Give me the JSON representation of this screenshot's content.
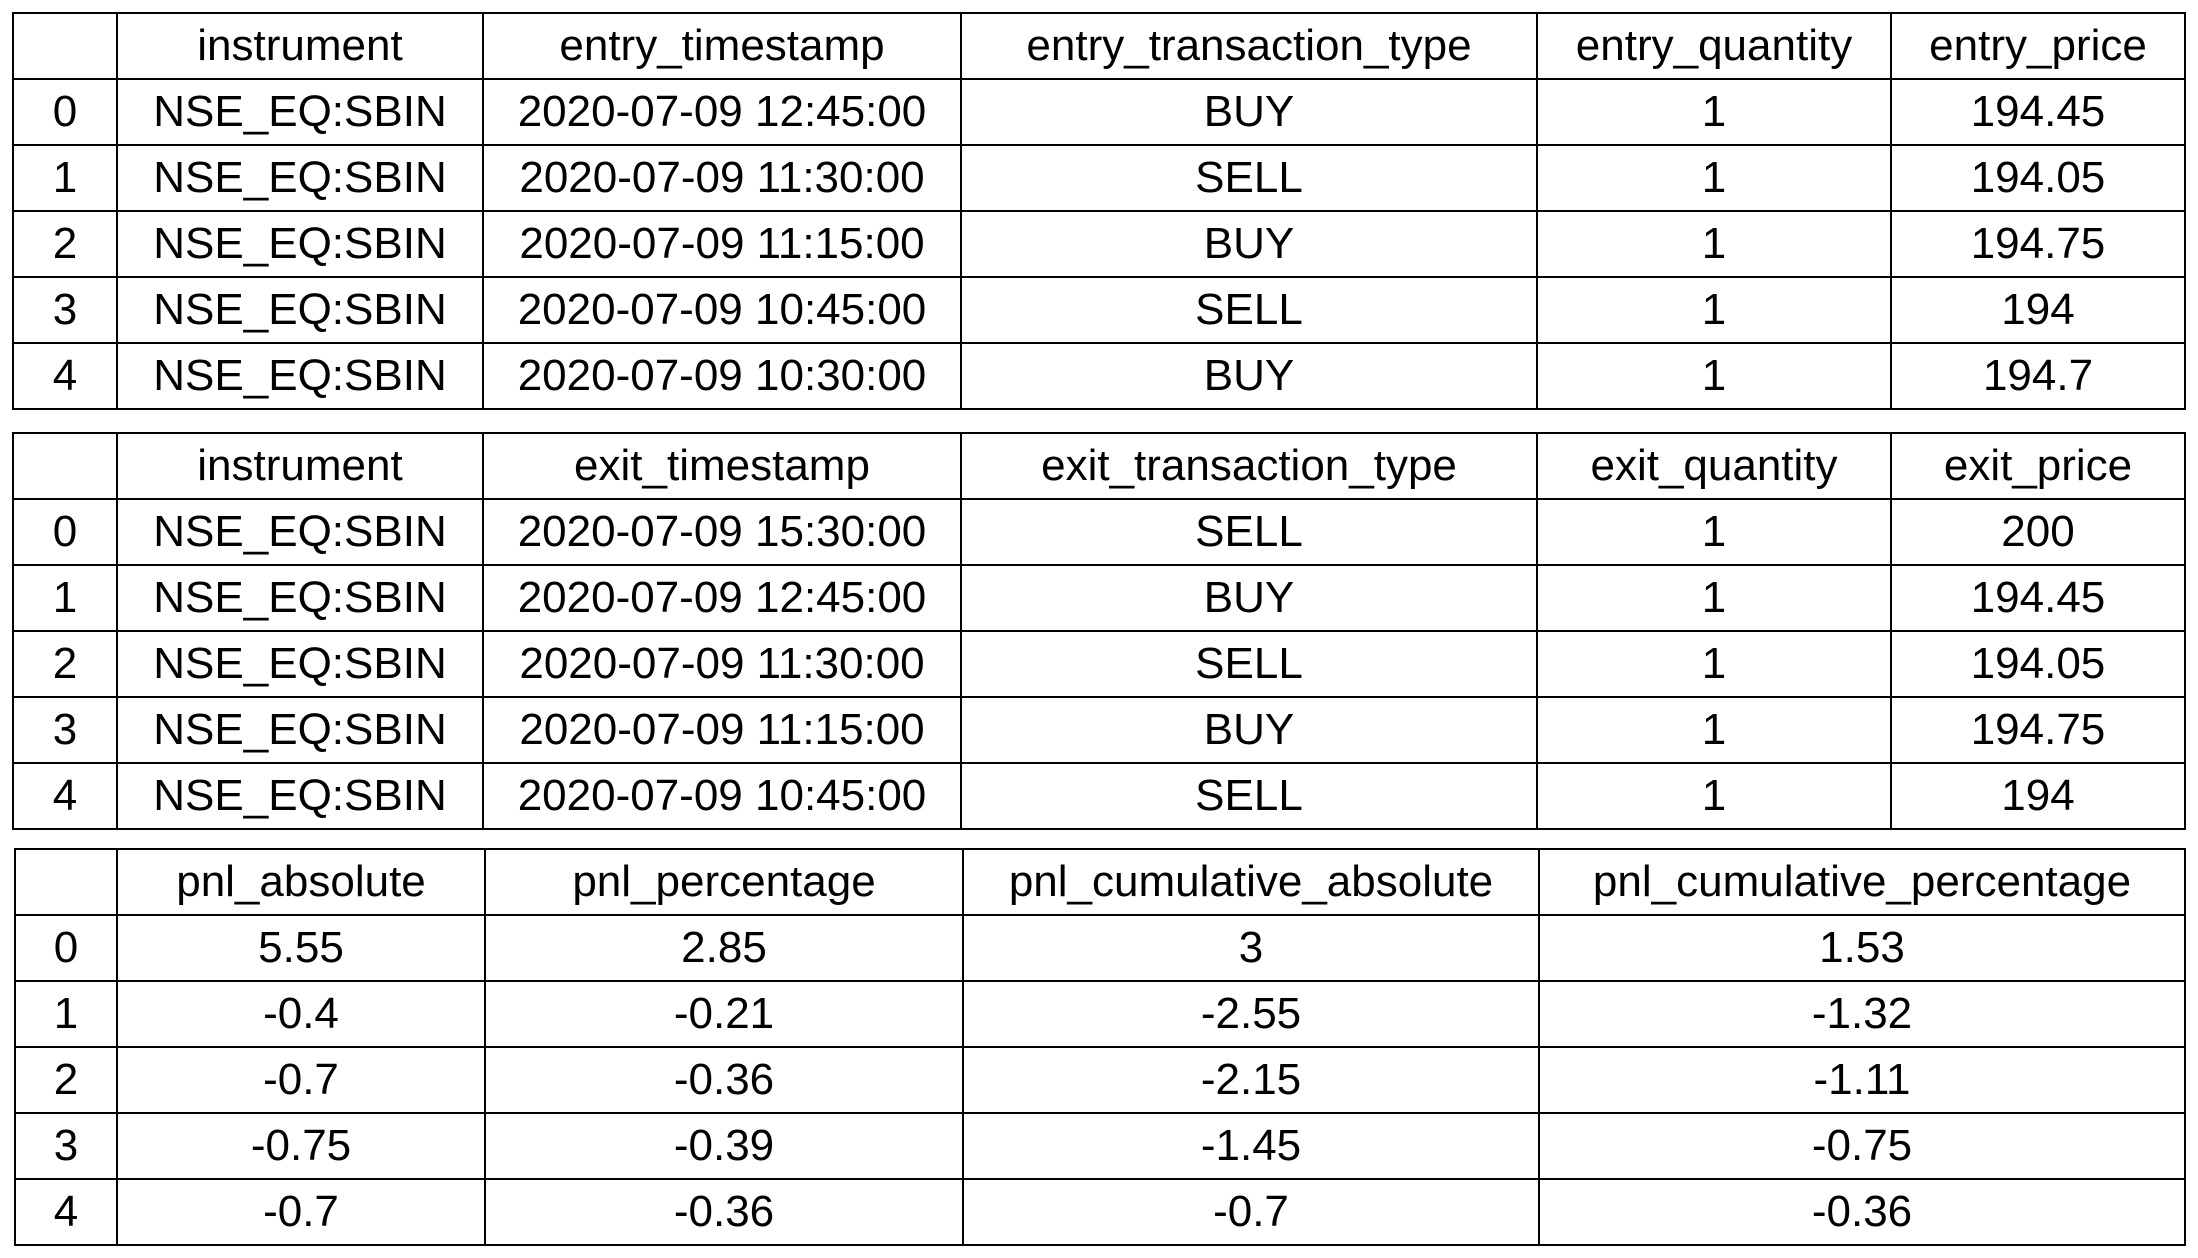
{
  "entry_table": {
    "columns": [
      "",
      "instrument",
      "entry_timestamp",
      "entry_transaction_type",
      "entry_quantity",
      "entry_price"
    ],
    "rows": [
      [
        "0",
        "NSE_EQ:SBIN",
        "2020-07-09 12:45:00",
        "BUY",
        "1",
        "194.45"
      ],
      [
        "1",
        "NSE_EQ:SBIN",
        "2020-07-09 11:30:00",
        "SELL",
        "1",
        "194.05"
      ],
      [
        "2",
        "NSE_EQ:SBIN",
        "2020-07-09 11:15:00",
        "BUY",
        "1",
        "194.75"
      ],
      [
        "3",
        "NSE_EQ:SBIN",
        "2020-07-09 10:45:00",
        "SELL",
        "1",
        "194"
      ],
      [
        "4",
        "NSE_EQ:SBIN",
        "2020-07-09 10:30:00",
        "BUY",
        "1",
        "194.7"
      ]
    ]
  },
  "exit_table": {
    "columns": [
      "",
      "instrument",
      "exit_timestamp",
      "exit_transaction_type",
      "exit_quantity",
      "exit_price"
    ],
    "rows": [
      [
        "0",
        "NSE_EQ:SBIN",
        "2020-07-09 15:30:00",
        "SELL",
        "1",
        "200"
      ],
      [
        "1",
        "NSE_EQ:SBIN",
        "2020-07-09 12:45:00",
        "BUY",
        "1",
        "194.45"
      ],
      [
        "2",
        "NSE_EQ:SBIN",
        "2020-07-09 11:30:00",
        "SELL",
        "1",
        "194.05"
      ],
      [
        "3",
        "NSE_EQ:SBIN",
        "2020-07-09 11:15:00",
        "BUY",
        "1",
        "194.75"
      ],
      [
        "4",
        "NSE_EQ:SBIN",
        "2020-07-09 10:45:00",
        "SELL",
        "1",
        "194"
      ]
    ]
  },
  "pnl_table": {
    "columns": [
      "",
      "pnl_absolute",
      "pnl_percentage",
      "pnl_cumulative_absolute",
      "pnl_cumulative_percentage"
    ],
    "rows": [
      [
        "0",
        "5.55",
        "2.85",
        "3",
        "1.53"
      ],
      [
        "1",
        "-0.4",
        "-0.21",
        "-2.55",
        "-1.32"
      ],
      [
        "2",
        "-0.7",
        "-0.36",
        "-2.15",
        "-1.11"
      ],
      [
        "3",
        "-0.75",
        "-0.39",
        "-1.45",
        "-0.75"
      ],
      [
        "4",
        "-0.7",
        "-0.36",
        "-0.7",
        "-0.36"
      ]
    ]
  }
}
